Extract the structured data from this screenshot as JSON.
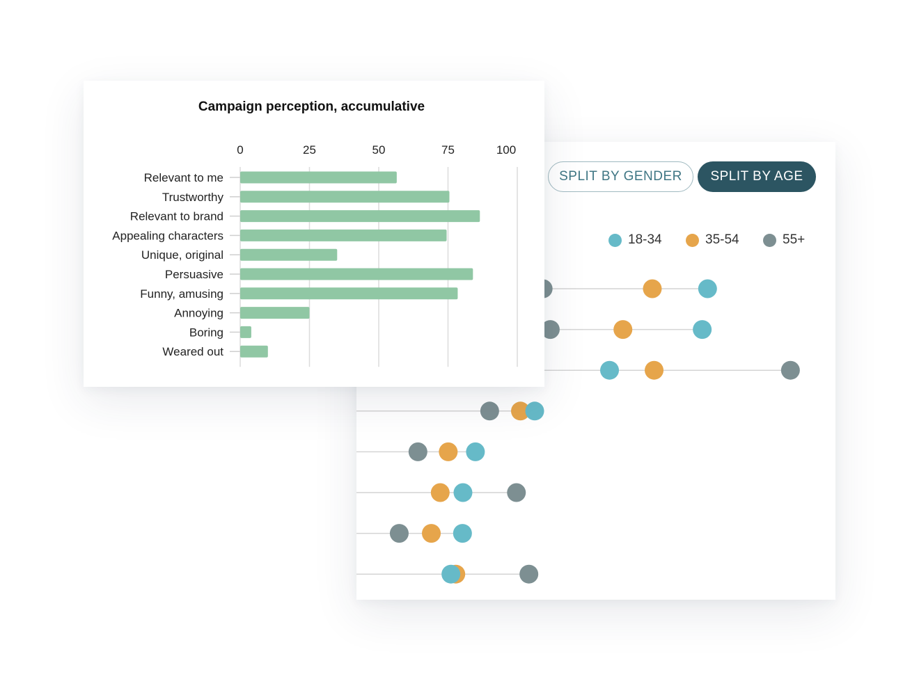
{
  "controls": {
    "split_gender": "SPLIT BY GENDER",
    "split_age": "SPLIT BY AGE"
  },
  "colors": {
    "bar": "#90c7a4",
    "age_18_34": "#66bac8",
    "age_35_54": "#e6a54b",
    "age_55_plus": "#7d8f92",
    "button_active": "#2c5562"
  },
  "chart_data": [
    {
      "type": "bar",
      "orientation": "horizontal",
      "title": "Campaign perception, accumulative",
      "categories": [
        "Relevant to me",
        "Trustworthy",
        "Relevant to brand",
        "Appealing characters",
        "Unique, original",
        "Persuasive",
        "Funny, amusing",
        "Annoying",
        "Boring",
        "Weared out"
      ],
      "values": [
        56.5,
        75.5,
        86.5,
        74.5,
        35,
        84,
        78.5,
        25,
        4,
        10
      ],
      "xlim": [
        0,
        100
      ],
      "xticks": [
        0,
        25,
        50,
        75,
        100
      ],
      "grid": true
    },
    {
      "type": "scatter",
      "style": "dumbbell",
      "legend": {
        "position": "top-right"
      },
      "series": [
        {
          "name": "18-34",
          "values": [
            78.8,
            77.6,
            56.8,
            40,
            26.7,
            23.9,
            23.8,
            21.2
          ]
        },
        {
          "name": "35-54",
          "values": [
            66.4,
            59.8,
            66.8,
            36.8,
            20.6,
            18.8,
            16.8,
            22.3
          ]
        },
        {
          "name": "55+",
          "values": [
            41.9,
            43.5,
            97.4,
            29.9,
            13.8,
            35.9,
            9.6,
            38.7
          ]
        }
      ]
    }
  ]
}
